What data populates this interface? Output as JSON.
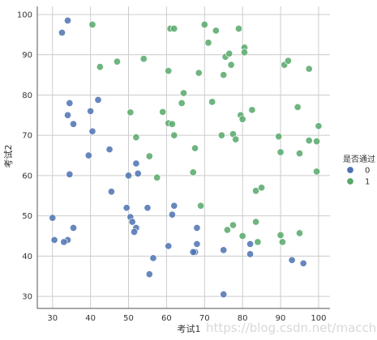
{
  "chart_data": {
    "type": "scatter",
    "title": "",
    "xlabel": "考试1",
    "ylabel": "考试2",
    "xlim": [
      26,
      103
    ],
    "ylim": [
      27,
      102
    ],
    "xticks": [
      30,
      40,
      50,
      60,
      70,
      80,
      90,
      100
    ],
    "yticks": [
      30,
      40,
      50,
      60,
      70,
      80,
      90,
      100
    ],
    "grid": true,
    "legend": {
      "title": "是否通过",
      "position": "right"
    },
    "series": [
      {
        "name": "0",
        "color": "#4c72b0",
        "points": [
          [
            34,
            98.5
          ],
          [
            32.5,
            95.5
          ],
          [
            34.5,
            78
          ],
          [
            34,
            75
          ],
          [
            35.5,
            72.8
          ],
          [
            42,
            78.8
          ],
          [
            40,
            76
          ],
          [
            39.5,
            65
          ],
          [
            40.5,
            71
          ],
          [
            45,
            66.5
          ],
          [
            34.5,
            60.3
          ],
          [
            50,
            60
          ],
          [
            52,
            63
          ],
          [
            52.5,
            60.5
          ],
          [
            45.5,
            56
          ],
          [
            30,
            49.5
          ],
          [
            49.5,
            52
          ],
          [
            50.5,
            49.7
          ],
          [
            51,
            48.5
          ],
          [
            52,
            47
          ],
          [
            51.5,
            46
          ],
          [
            55,
            52
          ],
          [
            62,
            52.5
          ],
          [
            61.5,
            50.3
          ],
          [
            35.5,
            47
          ],
          [
            30.5,
            44
          ],
          [
            34,
            44
          ],
          [
            33,
            43.5
          ],
          [
            60.5,
            42.5
          ],
          [
            56.5,
            39.5
          ],
          [
            55.5,
            35.5
          ],
          [
            68,
            47
          ],
          [
            68,
            43
          ],
          [
            67.5,
            41
          ],
          [
            67,
            41
          ],
          [
            75,
            41.5
          ],
          [
            82,
            43
          ],
          [
            82,
            40.5
          ],
          [
            93,
            39
          ],
          [
            96,
            38.2
          ],
          [
            75,
            30.5
          ]
        ]
      },
      {
        "name": "1",
        "color": "#55a868",
        "points": [
          [
            40.5,
            97.5
          ],
          [
            47,
            88.3
          ],
          [
            42.5,
            87
          ],
          [
            54,
            89
          ],
          [
            61,
            96.5
          ],
          [
            62,
            96.5
          ],
          [
            70,
            97.5
          ],
          [
            73,
            96
          ],
          [
            79,
            96.5
          ],
          [
            71,
            93
          ],
          [
            75.5,
            89.5
          ],
          [
            76.5,
            90.3
          ],
          [
            77,
            87.5
          ],
          [
            75,
            85
          ],
          [
            80.5,
            91.8
          ],
          [
            80.5,
            90.6
          ],
          [
            68.5,
            85.5
          ],
          [
            60.5,
            86
          ],
          [
            64.5,
            80.5
          ],
          [
            64,
            78
          ],
          [
            59,
            75.8
          ],
          [
            60.5,
            73
          ],
          [
            61.5,
            72.8
          ],
          [
            62,
            70
          ],
          [
            50.5,
            75.7
          ],
          [
            52,
            69.5
          ],
          [
            72,
            78.3
          ],
          [
            79.5,
            75
          ],
          [
            80,
            74
          ],
          [
            82.5,
            76.3
          ],
          [
            77.5,
            70.3
          ],
          [
            78.2,
            69
          ],
          [
            74.5,
            70
          ],
          [
            67.5,
            66.8
          ],
          [
            55.5,
            64.8
          ],
          [
            57.5,
            59.5
          ],
          [
            67,
            60.8
          ],
          [
            69,
            52.5
          ],
          [
            83.5,
            56.2
          ],
          [
            85,
            57
          ],
          [
            76,
            46.5
          ],
          [
            77.5,
            47.7
          ],
          [
            80,
            45
          ],
          [
            84,
            43.5
          ],
          [
            90.5,
            43.5
          ],
          [
            90,
            45.2
          ],
          [
            95,
            45.7
          ],
          [
            83.5,
            48.5
          ],
          [
            89.5,
            69.7
          ],
          [
            90,
            65.8
          ],
          [
            95,
            65.5
          ],
          [
            97.5,
            68.7
          ],
          [
            99.5,
            68.5
          ],
          [
            100,
            72.3
          ],
          [
            94.5,
            77
          ],
          [
            91,
            87.5
          ],
          [
            92,
            88.5
          ],
          [
            97.5,
            86.5
          ],
          [
            99.5,
            61
          ]
        ]
      }
    ]
  },
  "watermark_text": "https://blog.csdn.net/macchet"
}
